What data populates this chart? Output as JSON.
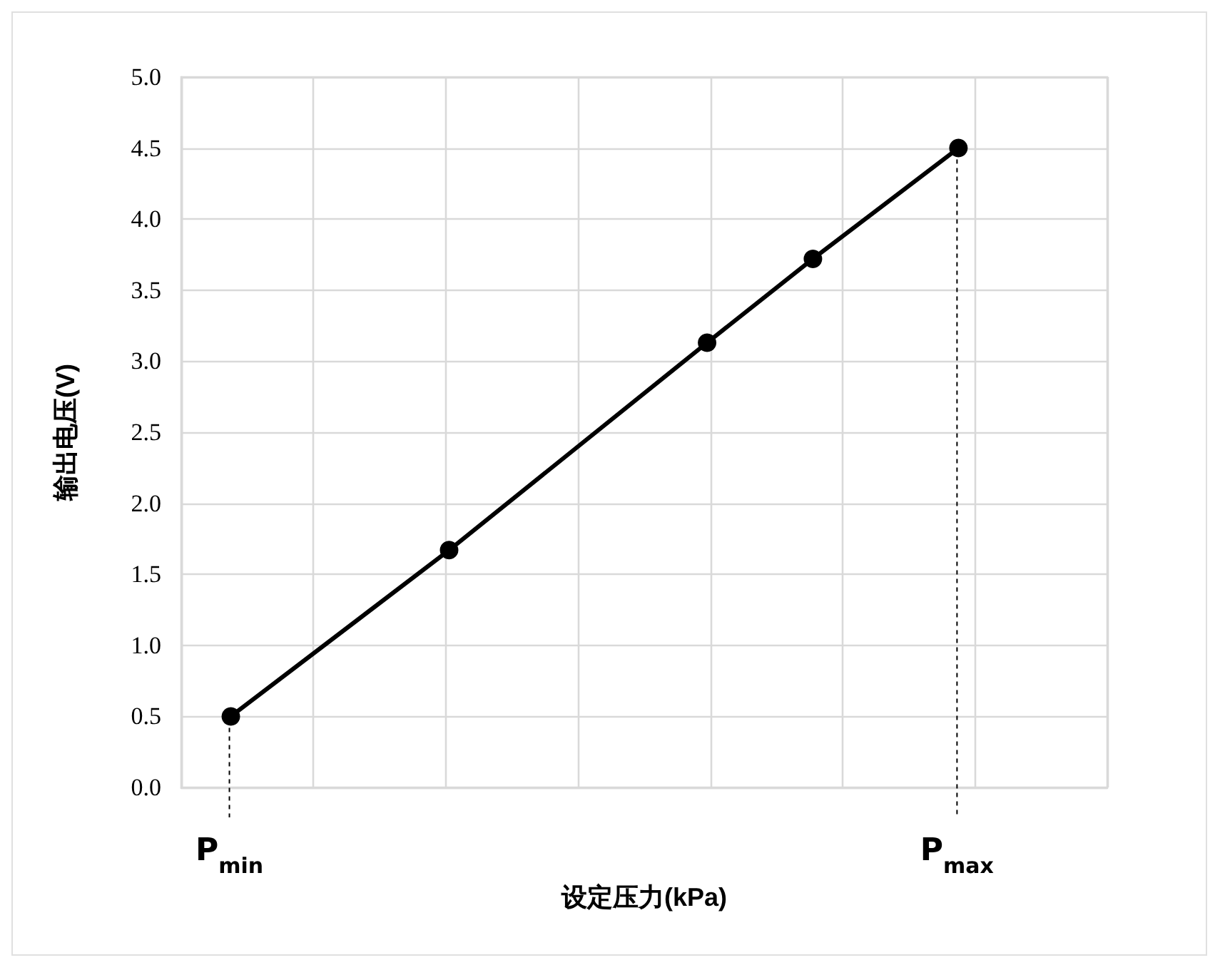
{
  "chart_data": {
    "type": "line",
    "xlabel": "设定压力(kPa)",
    "ylabel": "输出电压(V)",
    "categories": [
      null,
      null,
      null,
      null,
      null,
      null,
      null,
      null,
      null,
      null,
      null,
      null,
      null,
      null,
      null,
      null,
      null,
      null,
      null,
      null,
      null,
      null,
      null,
      null,
      null,
      null,
      null,
      null,
      null,
      null,
      null,
      null,
      null,
      null,
      null,
      null,
      null,
      null,
      null,
      null,
      null,
      null,
      null,
      null,
      null,
      null,
      null,
      null,
      null,
      null,
      null,
      null,
      null,
      null,
      null,
      null,
      null,
      null,
      null,
      null,
      null,
      null,
      null,
      null,
      null,
      null,
      null,
      null,
      null,
      null,
      null,
      null,
      null,
      null,
      null,
      null,
      null,
      null,
      null,
      null,
      null,
      null,
      null,
      null,
      null,
      null,
      null,
      null,
      null,
      null,
      null,
      null,
      null,
      null,
      null,
      null,
      null,
      null,
      null,
      null,
      null,
      null,
      null,
      null,
      null,
      null,
      null,
      null,
      null,
      null,
      null,
      null,
      null,
      null,
      null,
      null,
      null,
      null,
      null,
      null,
      null,
      null,
      null,
      null,
      null,
      null,
      null,
      null,
      null,
      null,
      null,
      null,
      null,
      null,
      null,
      null,
      null,
      null,
      null,
      null
    ],
    "series": [
      {
        "color": "#000000",
        "values": [
          null,
          null,
          null,
          null,
          null,
          null,
          null,
          0.5,
          null,
          null,
          null,
          null,
          null,
          null,
          null,
          null,
          null,
          null,
          null,
          null,
          null,
          null,
          null,
          null,
          null,
          null,
          null,
          null,
          null,
          null,
          null,
          null,
          null,
          null,
          null,
          null,
          null,
          null,
          null,
          null,
          1.67,
          null,
          null,
          null,
          null,
          null,
          null,
          null,
          null,
          null,
          null,
          null,
          null,
          null,
          null,
          null,
          null,
          null,
          null,
          null,
          null,
          null,
          null,
          null,
          null,
          null,
          null,
          null,
          null,
          null,
          null,
          null,
          null,
          null,
          null,
          null,
          null,
          null,
          null,
          3.13,
          null,
          null,
          null,
          null,
          null,
          null,
          null,
          null,
          null,
          null,
          null,
          null,
          null,
          null,
          null,
          3.72,
          null,
          null,
          null,
          null,
          null,
          null,
          null,
          null,
          null,
          null,
          null,
          null,
          null,
          null,
          null,
          null,
          null,
          null,
          null,
          null,
          null,
          4.5,
          null,
          null,
          null,
          null,
          null,
          null,
          null,
          null,
          null,
          null,
          null,
          null,
          null,
          null,
          null,
          null,
          null,
          null,
          null,
          null,
          null,
          null
        ]
      }
    ],
    "ylim": [
      0,
      5
    ],
    "yticks": [
      {
        "value": 0,
        "label": "0.0"
      },
      {
        "value": 0.5,
        "label": "0.5"
      },
      {
        "value": 1,
        "label": "1.0"
      },
      {
        "value": 1.5,
        "label": "1.5"
      },
      {
        "value": 2,
        "label": "2.0"
      },
      {
        "value": 2.5,
        "label": "2.5"
      },
      {
        "value": 3,
        "label": "3.0"
      },
      {
        "value": 3.5,
        "label": "3.5"
      },
      {
        "value": 4,
        "label": "4.0"
      },
      {
        "value": 4.5,
        "label": "4.5"
      },
      {
        "value": 5,
        "label": "5.0"
      }
    ],
    "annotations": [
      {
        "text": "P$_{min}$",
        "y": 0.5
      },
      {
        "text": "P$_{max}$",
        "y": 4.5
      }
    ],
    "tick_labels": "y",
    "grid": true,
    "marker": "circle",
    "line_style": "solid"
  }
}
